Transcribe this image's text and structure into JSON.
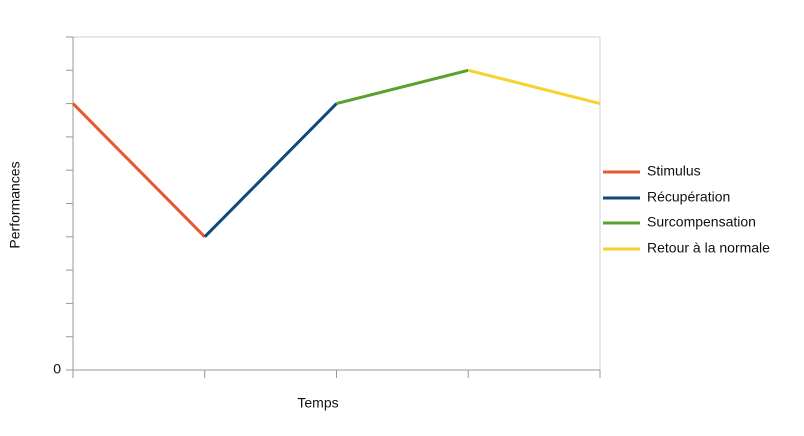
{
  "chart_data": {
    "type": "line",
    "xlabel": "Temps",
    "ylabel": "Performances",
    "categories": [
      null,
      null,
      null,
      null,
      null
    ],
    "series": [
      {
        "name": "Stimulus",
        "color": "#e8582e",
        "values": [
          8,
          4,
          null,
          null,
          null
        ]
      },
      {
        "name": "Récupération",
        "color": "#0f4a7f",
        "values": [
          null,
          4,
          8,
          null,
          null
        ]
      },
      {
        "name": "Surcompensation",
        "color": "#5aa02c",
        "values": [
          null,
          null,
          8,
          9,
          null
        ]
      },
      {
        "name": "Retour à la normale",
        "color": "#f5d22c",
        "values": [
          null,
          null,
          null,
          9,
          8
        ]
      }
    ],
    "ylim": [
      0,
      10
    ],
    "yticks": [
      0
    ],
    "minor_yticks": [
      1,
      2,
      3,
      4,
      5,
      6,
      7,
      8,
      9,
      10
    ],
    "legend": "right"
  }
}
